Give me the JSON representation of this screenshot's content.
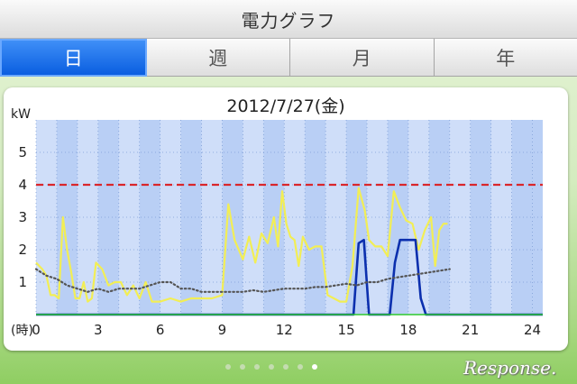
{
  "header": {
    "title": "電力グラフ"
  },
  "tabs": [
    {
      "label": "日",
      "active": true
    },
    {
      "label": "週",
      "active": false
    },
    {
      "label": "月",
      "active": false
    },
    {
      "label": "年",
      "active": false
    }
  ],
  "pager": {
    "count": 7,
    "active_index": 6
  },
  "logo_text": "Response.",
  "colors": {
    "accent": "#1a6cf0",
    "usage_line": "#f2ee55",
    "generation_line": "#0b2fae",
    "average_line": "#555555",
    "limit_line": "#d9262b",
    "background": "#b5d86c"
  },
  "chart_data": {
    "type": "line",
    "title": "2012/7/27(金)",
    "ylabel": "kW",
    "xlabel": "(時)",
    "xlim": [
      0,
      24.5
    ],
    "ylim": [
      0,
      6
    ],
    "x_ticks": [
      0,
      3,
      6,
      9,
      12,
      15,
      18,
      21,
      24
    ],
    "y_ticks": [
      1,
      2,
      3,
      4,
      5
    ],
    "grid": true,
    "reference_line": {
      "y": 4
    },
    "series": [
      {
        "style": "line",
        "color": "#f2ee55",
        "x": [
          0,
          0.3,
          0.5,
          0.7,
          0.9,
          1.1,
          1.3,
          1.5,
          1.7,
          1.9,
          2.1,
          2.3,
          2.5,
          2.7,
          2.9,
          3.2,
          3.5,
          3.8,
          4.1,
          4.4,
          4.7,
          5.0,
          5.3,
          5.6,
          6.0,
          6.5,
          7.0,
          7.5,
          8.0,
          8.5,
          9.0,
          9.3,
          9.6,
          9.8,
          10.0,
          10.3,
          10.6,
          10.9,
          11.2,
          11.5,
          11.7,
          11.9,
          12.1,
          12.3,
          12.5,
          12.7,
          12.9,
          13.2,
          13.5,
          13.8,
          14.1,
          14.4,
          14.7,
          15.0,
          15.3,
          15.6,
          15.9,
          16.1,
          16.4,
          16.7,
          17.0,
          17.3,
          17.6,
          17.9,
          18.2,
          18.5,
          18.8,
          19.1,
          19.3,
          19.5,
          19.7,
          19.9
        ],
        "y": [
          1.6,
          1.4,
          1.2,
          0.6,
          0.6,
          0.5,
          3.0,
          2.0,
          1.3,
          0.5,
          0.5,
          1.0,
          0.4,
          0.5,
          1.6,
          1.4,
          0.9,
          1.0,
          1.0,
          0.6,
          0.9,
          0.5,
          1.0,
          0.4,
          0.4,
          0.5,
          0.4,
          0.5,
          0.5,
          0.5,
          0.6,
          3.4,
          2.3,
          2.0,
          1.7,
          2.4,
          1.6,
          2.5,
          2.2,
          3.0,
          2.1,
          3.8,
          2.8,
          2.4,
          2.3,
          1.5,
          2.4,
          2.0,
          2.1,
          2.1,
          0.6,
          0.5,
          0.4,
          0.4,
          1.5,
          3.9,
          3.2,
          2.3,
          2.1,
          2.1,
          1.8,
          3.8,
          3.3,
          2.9,
          2.8,
          2.0,
          2.6,
          3.0,
          1.5,
          2.6,
          2.8,
          2.8
        ]
      },
      {
        "style": "line",
        "color": "#0b2fae",
        "x": [
          0,
          15.1,
          15.35,
          15.6,
          15.85,
          16.1,
          16.35,
          16.6,
          16.85,
          17.1,
          17.35,
          17.6,
          17.85,
          18.1,
          18.35,
          18.6,
          18.85,
          19.1,
          24.5
        ],
        "y": [
          0,
          0,
          0,
          2.2,
          2.3,
          0,
          0,
          0,
          0,
          0,
          1.6,
          2.3,
          2.3,
          2.3,
          2.3,
          0.5,
          0,
          0,
          0
        ]
      },
      {
        "style": "dotted",
        "color": "#555555",
        "x": [
          0,
          0.5,
          1.0,
          1.5,
          2.0,
          2.5,
          3.0,
          3.5,
          4.0,
          4.5,
          5.0,
          5.5,
          6.0,
          6.5,
          7.0,
          7.5,
          8.0,
          8.5,
          9.0,
          9.5,
          10.0,
          10.5,
          11.0,
          11.5,
          12.0,
          12.5,
          13.0,
          13.5,
          14.0,
          14.5,
          15.0,
          15.5,
          16.0,
          16.5,
          17.0,
          17.5,
          18.0,
          18.5,
          19.0,
          19.5,
          20.0
        ],
        "y": [
          1.4,
          1.2,
          1.1,
          0.9,
          0.8,
          0.7,
          0.8,
          0.7,
          0.8,
          0.8,
          0.8,
          0.9,
          1.0,
          1.0,
          0.8,
          0.8,
          0.7,
          0.7,
          0.7,
          0.7,
          0.7,
          0.75,
          0.7,
          0.75,
          0.8,
          0.8,
          0.8,
          0.85,
          0.85,
          0.9,
          0.95,
          0.9,
          1.0,
          1.0,
          1.1,
          1.15,
          1.2,
          1.25,
          1.3,
          1.35,
          1.4
        ]
      }
    ]
  }
}
